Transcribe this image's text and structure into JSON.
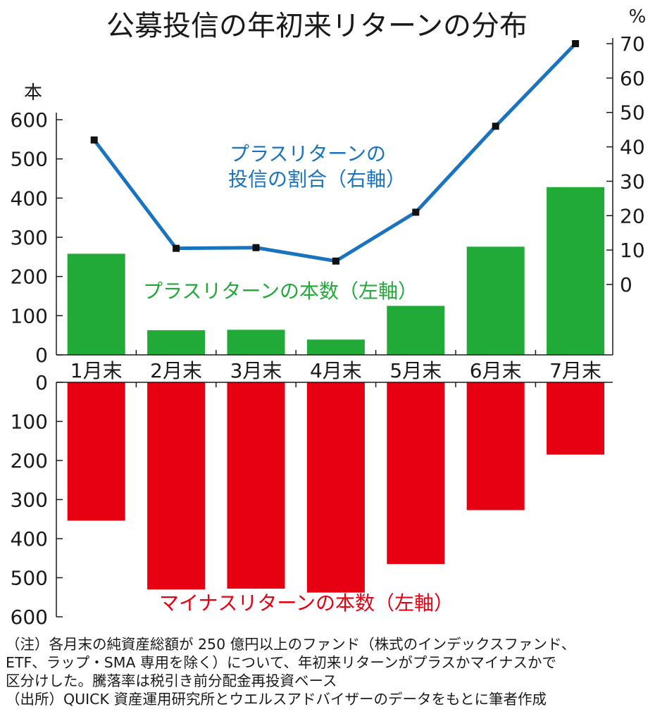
{
  "chart_data": {
    "type": "bar",
    "title": "公募投信の年初来リターンの分布",
    "left_axis_unit": "本",
    "right_axis_unit": "%",
    "categories": [
      "1月末",
      "2月末",
      "3月末",
      "4月末",
      "5月末",
      "6月末",
      "7月末"
    ],
    "upper_ticks": [
      "600",
      "500",
      "400",
      "300",
      "200",
      "100",
      "0"
    ],
    "lower_ticks": [
      "0",
      "100",
      "200",
      "300",
      "400",
      "500",
      "600"
    ],
    "right_ticks": [
      "70",
      "60",
      "50",
      "40",
      "30",
      "20",
      "10",
      "0"
    ],
    "left_ylim": [
      0,
      600
    ],
    "right_ylim": [
      0,
      70
    ],
    "series": [
      {
        "name": "プラスリターンの本数（左軸）",
        "type": "bar",
        "axis": "left",
        "color": "#22aa38",
        "values": [
          258,
          63,
          64,
          39,
          125,
          276,
          428
        ]
      },
      {
        "name": "マイナスリターンの本数（左軸）",
        "type": "bar",
        "axis": "left",
        "color": "#e60012",
        "values": [
          354,
          530,
          528,
          538,
          465,
          327,
          185
        ]
      },
      {
        "name_lines": [
          "プラスリターンの",
          "投信の割合（右軸）"
        ],
        "type": "line",
        "axis": "right",
        "color": "#1a73bf",
        "values": [
          42,
          10.5,
          10.7,
          6.8,
          21,
          46,
          70
        ]
      }
    ]
  },
  "notes": [
    "（注）各月末の純資産総額が 250 億円以上のファンド（株式のインデックスファンド、",
    "ETF、ラップ・SMA 専用を除く）について、年初来リターンがプラスかマイナスかで",
    "区分けした。騰落率は税引き前分配金再投資ベース",
    "（出所）QUICK 資産運用研究所とウエルスアドバイザーのデータをもとに筆者作成"
  ]
}
